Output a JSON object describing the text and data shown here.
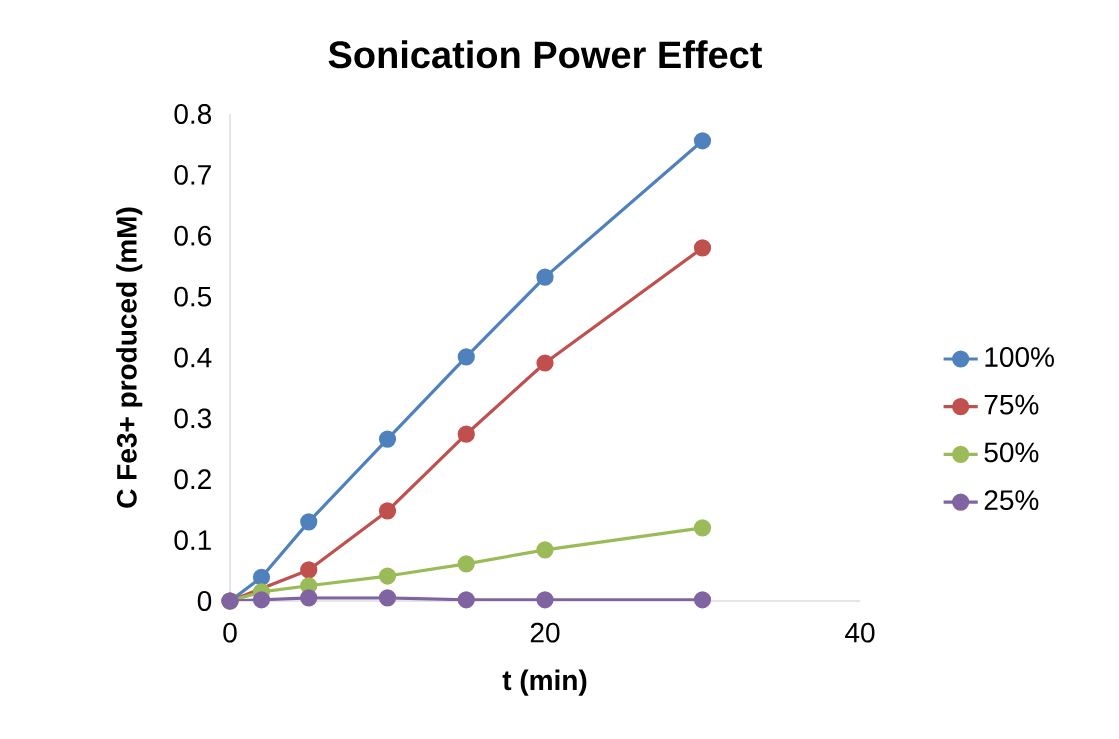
{
  "chart_data": {
    "type": "line",
    "title": "Sonication Power Effect",
    "xlabel": "t (min)",
    "ylabel": "C Fe3+ produced (mM)",
    "x": [
      0,
      2,
      5,
      10,
      15,
      20,
      30
    ],
    "series": [
      {
        "name": "100%",
        "color": "#4f81bd",
        "values": [
          0,
          0.039,
          0.13,
          0.266,
          0.401,
          0.532,
          0.756
        ]
      },
      {
        "name": "75%",
        "color": "#c0504d",
        "values": [
          0,
          null,
          0.051,
          0.148,
          0.274,
          0.391,
          0.58
        ]
      },
      {
        "name": "50%",
        "color": "#9bbb59",
        "values": [
          0,
          0.015,
          0.025,
          0.041,
          0.061,
          0.084,
          0.12
        ]
      },
      {
        "name": "25%",
        "color": "#8064a2",
        "values": [
          0,
          0.002,
          0.005,
          0.005,
          0.002,
          0.002,
          0.002
        ]
      }
    ],
    "xlim": [
      0,
      40
    ],
    "ylim": [
      0,
      0.8
    ],
    "xticks": [
      0,
      20,
      40
    ],
    "yticks": [
      0,
      0.1,
      0.2,
      0.3,
      0.4,
      0.5,
      0.6,
      0.7,
      0.8
    ],
    "grid": false,
    "legend": "right",
    "marker": "circle",
    "line_style": "solid"
  }
}
